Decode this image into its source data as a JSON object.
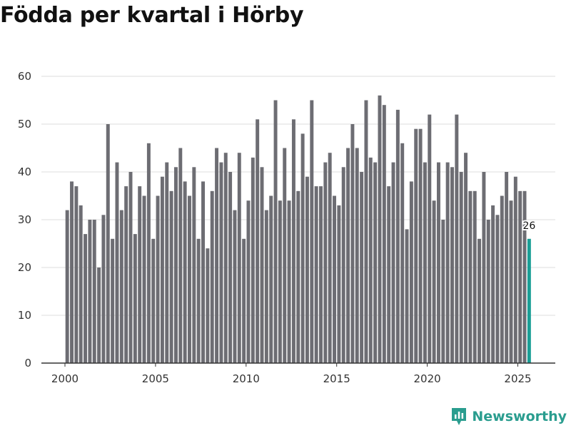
{
  "title": "Födda per kvartal i Hörby",
  "brand": "Newsworthy",
  "colors": {
    "bar": "#6d6d73",
    "highlight": "#1a9e96",
    "grid": "#dddddd",
    "axis": "#333333",
    "brand": "#2a9d8f"
  },
  "chart_data": {
    "type": "bar",
    "title": "Födda per kvartal i Hörby",
    "xlabel": "",
    "ylabel": "",
    "start_year": 2000,
    "start_quarter": 1,
    "x_ticks": [
      2000,
      2005,
      2010,
      2015,
      2020,
      2025
    ],
    "x_tick_labels": [
      "2000",
      "2005",
      "2010",
      "2015",
      "2020",
      "2025"
    ],
    "y_ticks": [
      0,
      10,
      20,
      30,
      40,
      50,
      60
    ],
    "y_tick_labels": [
      "0",
      "10",
      "20",
      "30",
      "40",
      "50",
      "60"
    ],
    "ylim": [
      0,
      60
    ],
    "grid": true,
    "values": [
      32,
      38,
      37,
      33,
      27,
      30,
      30,
      20,
      31,
      50,
      26,
      42,
      32,
      37,
      40,
      27,
      37,
      35,
      46,
      26,
      35,
      39,
      42,
      36,
      41,
      45,
      38,
      35,
      41,
      26,
      38,
      24,
      36,
      45,
      42,
      44,
      40,
      32,
      44,
      26,
      34,
      43,
      51,
      41,
      32,
      35,
      55,
      34,
      45,
      34,
      51,
      36,
      48,
      39,
      55,
      37,
      37,
      42,
      44,
      35,
      33,
      41,
      45,
      50,
      45,
      40,
      55,
      43,
      42,
      56,
      54,
      37,
      42,
      53,
      46,
      28,
      38,
      49,
      49,
      42,
      52,
      34,
      42,
      30,
      42,
      41,
      52,
      40,
      44,
      36,
      36,
      26,
      40,
      30,
      33,
      31,
      35,
      40,
      34,
      39,
      36,
      36,
      26
    ],
    "highlight_last": true,
    "highlight_label": "26"
  }
}
